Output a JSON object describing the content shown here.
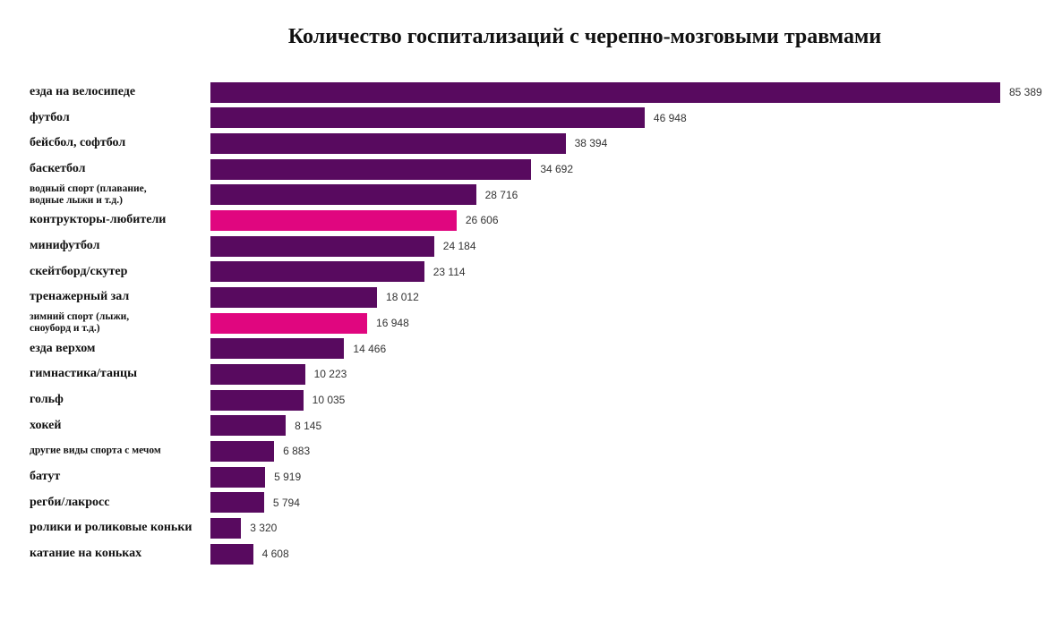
{
  "chart_data": {
    "type": "bar",
    "orientation": "horizontal",
    "title": "Количество госпитализаций с черепно-мозговыми травмами",
    "categories": [
      "езда на велосипеде",
      "футбол",
      "бейсбол, софтбол",
      "баскетбол",
      "водный спорт (плавание, водные лыжи и т.д.)",
      "контрукторы-любители",
      "минифутбол",
      "скейтборд/скутер",
      "тренажерный зал",
      "зимний спорт (лыжи, сноуборд и т.д.)",
      "езда верхом",
      "гимнастика/танцы",
      "гольф",
      "хокей",
      "другие виды спорта с мечом",
      "батут",
      "регби/лакросс",
      "ролики и роликовые коньки",
      "катание на коньках"
    ],
    "values": [
      85389,
      46948,
      38394,
      34692,
      28716,
      26606,
      24184,
      23114,
      18012,
      16948,
      14466,
      10223,
      10035,
      8145,
      6883,
      5919,
      5794,
      3320,
      4608
    ],
    "value_labels": [
      "85 389",
      "46 948",
      "38 394",
      "34 692",
      "28 716",
      "26 606",
      "24 184",
      "23 114",
      "18 012",
      "16 948",
      "14 466",
      "10 223",
      "10 035",
      "8 145",
      "6 883",
      "5 919",
      "5 794",
      "3 320",
      "4 608"
    ],
    "colors": [
      "#580a5f",
      "#580a5f",
      "#580a5f",
      "#580a5f",
      "#580a5f",
      "#e0067f",
      "#580a5f",
      "#580a5f",
      "#580a5f",
      "#e0067f",
      "#580a5f",
      "#580a5f",
      "#580a5f",
      "#580a5f",
      "#580a5f",
      "#580a5f",
      "#580a5f",
      "#580a5f",
      "#580a5f"
    ]
  }
}
